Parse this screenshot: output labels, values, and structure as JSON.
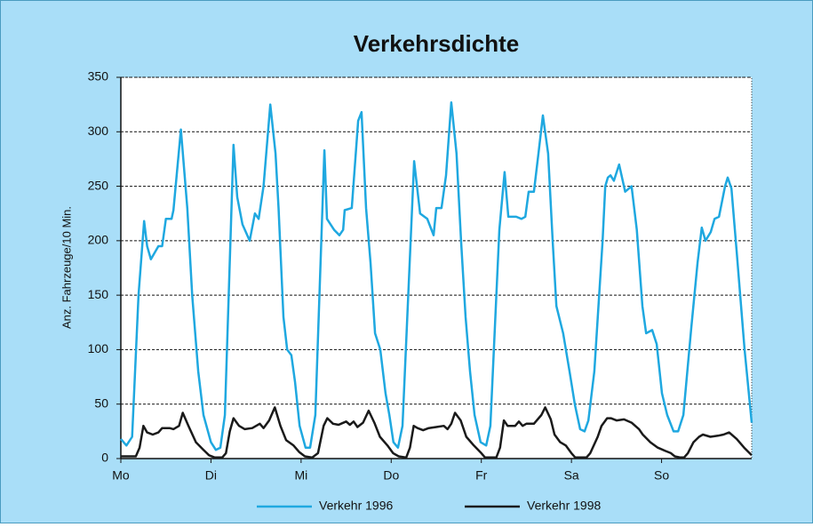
{
  "chart_data": {
    "type": "line",
    "title": "Verkehrsdichte",
    "ylabel": "Anz. Fahrzeuge/10 Min.",
    "xlim": [
      0,
      168
    ],
    "xticks": [
      {
        "value": 0,
        "label": "Mo"
      },
      {
        "value": 24,
        "label": "Di"
      },
      {
        "value": 48,
        "label": "Mi"
      },
      {
        "value": 72,
        "label": "Do"
      },
      {
        "value": 96,
        "label": "Fr"
      },
      {
        "value": 120,
        "label": "Sa"
      },
      {
        "value": 144,
        "label": "So"
      }
    ],
    "ylim": [
      0,
      350
    ],
    "yticks": [
      0,
      50,
      100,
      150,
      200,
      250,
      300,
      350
    ],
    "grid": true,
    "legend": "bottom",
    "series": [
      {
        "name": "Verkehr 1996",
        "color": "#1fa8e0",
        "x": [
          0,
          1.5,
          3,
          4.7,
          6.2,
          7,
          8,
          10,
          11,
          12,
          13.5,
          14,
          16,
          17.7,
          19,
          20.6,
          22,
          24,
          25.3,
          26.5,
          27.7,
          30,
          31,
          32.4,
          34.3,
          35.7,
          36.7,
          38,
          39.8,
          41.2,
          42,
          43.3,
          44.3,
          45.4,
          46.4,
          47.6,
          49.2,
          50.4,
          51.8,
          54.2,
          54.9,
          56.8,
          58.2,
          59.2,
          59.6,
          61.5,
          63.2,
          64.1,
          65.3,
          66.5,
          67.7,
          69.1,
          70.5,
          71.5,
          72.6,
          73.8,
          75,
          78.1,
          79.7,
          81.6,
          83.3,
          84,
          85.4,
          86.6,
          88,
          89.4,
          90.6,
          91.8,
          93,
          94.2,
          95.8,
          97.3,
          98.4,
          100.8,
          102.2,
          103.2,
          105.3,
          106.7,
          107.7,
          108.6,
          110,
          111.2,
          112.4,
          113.8,
          115,
          116,
          117.8,
          119.5,
          120.9,
          122.3,
          123.5,
          124.5,
          126.1,
          128.3,
          129,
          129.7,
          130.4,
          131.3,
          132.7,
          134.3,
          136,
          137.4,
          138.9,
          139.9,
          141.5,
          142.7,
          144.1,
          145.5,
          147.2,
          148.4,
          149.8,
          151.9,
          153.6,
          154.7,
          155.7,
          157.1,
          158.1,
          159.3,
          160.9,
          161.6,
          162.6,
          164,
          166.1,
          168
        ],
        "values": [
          18,
          12,
          20,
          150,
          218,
          195,
          183,
          195,
          195,
          220,
          220,
          228,
          302,
          230,
          150,
          80,
          40,
          15,
          8,
          10,
          40,
          288,
          240,
          215,
          200,
          225,
          220,
          250,
          325,
          280,
          230,
          130,
          100,
          95,
          70,
          30,
          10,
          10,
          40,
          283,
          220,
          210,
          205,
          210,
          228,
          230,
          310,
          318,
          230,
          180,
          115,
          100,
          60,
          40,
          15,
          10,
          30,
          273,
          225,
          220,
          205,
          230,
          230,
          260,
          327,
          280,
          200,
          130,
          80,
          40,
          15,
          12,
          30,
          210,
          263,
          222,
          222,
          220,
          222,
          245,
          245,
          280,
          315,
          280,
          200,
          140,
          115,
          80,
          50,
          27,
          25,
          35,
          80,
          200,
          250,
          258,
          260,
          255,
          270,
          245,
          250,
          210,
          140,
          115,
          118,
          105,
          60,
          40,
          25,
          25,
          40,
          120,
          180,
          212,
          200,
          208,
          220,
          222,
          250,
          258,
          248,
          190,
          100,
          33
        ]
      },
      {
        "name": "Verkehr 1998",
        "color": "#1a1a1a",
        "x": [
          0,
          4,
          5,
          6,
          7,
          8.5,
          10,
          11,
          13,
          14,
          15.5,
          16.5,
          18,
          20,
          22,
          23.5,
          25,
          27,
          28,
          29,
          30,
          31.5,
          33,
          35,
          37,
          38,
          39.5,
          41,
          42.5,
          44,
          46,
          47.5,
          49,
          51,
          52.5,
          54,
          55,
          56.5,
          58,
          60,
          61,
          62,
          63,
          64.5,
          66,
          67.5,
          69,
          71,
          72.5,
          74,
          76,
          77,
          78,
          79,
          80.5,
          82,
          84,
          86,
          87,
          88,
          89,
          90.5,
          92,
          94,
          96,
          97,
          100,
          101,
          102,
          103,
          105,
          106,
          107,
          108,
          110,
          112,
          113,
          114.5,
          115.5,
          117,
          118.5,
          120,
          121,
          124,
          125,
          127,
          128,
          129.5,
          130.5,
          132,
          134,
          136,
          138,
          139,
          141,
          143,
          145,
          146.5,
          147.5,
          149,
          150,
          151,
          152.5,
          154,
          155,
          157,
          159,
          160.5,
          162,
          164,
          166,
          168
        ],
        "values": [
          2,
          2,
          10,
          30,
          24,
          22,
          24,
          28,
          28,
          27,
          30,
          42,
          30,
          15,
          8,
          3,
          1,
          1,
          5,
          25,
          37,
          30,
          27,
          28,
          32,
          28,
          35,
          47,
          30,
          17,
          12,
          6,
          2,
          1,
          5,
          30,
          37,
          32,
          31,
          34,
          31,
          34,
          29,
          33,
          44,
          33,
          20,
          12,
          5,
          2,
          1,
          10,
          30,
          28,
          26,
          28,
          29,
          30,
          27,
          32,
          42,
          35,
          20,
          12,
          5,
          1,
          1,
          10,
          35,
          30,
          30,
          34,
          30,
          32,
          32,
          40,
          47,
          36,
          22,
          15,
          12,
          5,
          1,
          1,
          5,
          20,
          30,
          37,
          37,
          35,
          36,
          33,
          27,
          22,
          15,
          10,
          7,
          5,
          2,
          1,
          1,
          5,
          15,
          20,
          22,
          20,
          21,
          22,
          24,
          18,
          10,
          3
        ]
      }
    ]
  }
}
